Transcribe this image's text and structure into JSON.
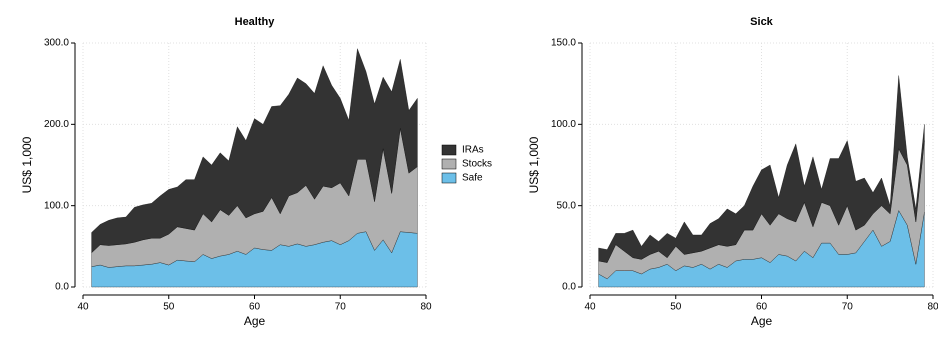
{
  "chart_data": [
    {
      "type": "stacked_area",
      "title": "Healthy",
      "xlabel": "Age",
      "ylabel": "US$ 1,000",
      "grid": true,
      "legend": "right",
      "x": [
        41,
        42,
        43,
        44,
        45,
        46,
        47,
        48,
        49,
        50,
        51,
        52,
        53,
        54,
        55,
        56,
        57,
        58,
        59,
        60,
        61,
        62,
        63,
        64,
        65,
        66,
        67,
        68,
        69,
        70,
        71,
        72,
        73,
        74,
        75,
        76,
        77,
        78,
        79
      ],
      "xlim": [
        40,
        80
      ],
      "xticks": [
        40,
        50,
        60,
        70,
        80
      ],
      "ylim": [
        0,
        300
      ],
      "yticks": [
        {
          "value": 0,
          "label": "0.0"
        },
        {
          "value": 100,
          "label": "100.0"
        },
        {
          "value": 200,
          "label": "200.0"
        },
        {
          "value": 300,
          "label": "300.0"
        }
      ],
      "series": [
        {
          "name": "Safe",
          "color": "#6cbfe8",
          "values": [
            25,
            27,
            24,
            25,
            26,
            26,
            27,
            28,
            30,
            27,
            33,
            32,
            31,
            40,
            35,
            38,
            40,
            44,
            40,
            48,
            46,
            45,
            52,
            50,
            53,
            50,
            52,
            55,
            57,
            52,
            57,
            66,
            68,
            45,
            58,
            42,
            68,
            67,
            66
          ]
        },
        {
          "name": "Stocks",
          "color": "#b0b0b0",
          "values": [
            17,
            25,
            27,
            27,
            27,
            29,
            31,
            32,
            30,
            38,
            41,
            40,
            39,
            50,
            45,
            57,
            48,
            56,
            45,
            42,
            47,
            65,
            38,
            62,
            63,
            75,
            56,
            69,
            65,
            76,
            55,
            91,
            89,
            60,
            112,
            73,
            127,
            73,
            82
          ]
        },
        {
          "name": "IRAs",
          "color": "#333333",
          "values": [
            25,
            25,
            31,
            33,
            33,
            43,
            43,
            43,
            52,
            55,
            49,
            60,
            62,
            70,
            70,
            70,
            67,
            97,
            95,
            117,
            107,
            112,
            133,
            125,
            141,
            125,
            130,
            148,
            126,
            104,
            93,
            136,
            108,
            120,
            88,
            125,
            85,
            77,
            84
          ]
        }
      ]
    },
    {
      "type": "stacked_area",
      "title": "Sick",
      "xlabel": "Age",
      "ylabel": "US$ 1,000",
      "grid": true,
      "x": [
        41,
        42,
        43,
        44,
        45,
        46,
        47,
        48,
        49,
        50,
        51,
        52,
        53,
        54,
        55,
        56,
        57,
        58,
        59,
        60,
        61,
        62,
        63,
        64,
        65,
        66,
        67,
        68,
        69,
        70,
        71,
        72,
        73,
        74,
        75,
        76,
        77,
        78,
        79
      ],
      "xlim": [
        40,
        80
      ],
      "xticks": [
        40,
        50,
        60,
        70,
        80
      ],
      "ylim": [
        0,
        150
      ],
      "yticks": [
        {
          "value": 0,
          "label": "0.0"
        },
        {
          "value": 50,
          "label": "50.0"
        },
        {
          "value": 100,
          "label": "100.0"
        },
        {
          "value": 150,
          "label": "150.0"
        }
      ],
      "series": [
        {
          "color": "#6cbfe8",
          "values": [
            8,
            5,
            10,
            10,
            10,
            8,
            11,
            12,
            14,
            10,
            13,
            12,
            14,
            11,
            14,
            12,
            16,
            17,
            17,
            18,
            15,
            20,
            19,
            16,
            22,
            18,
            27,
            27,
            20,
            20,
            21,
            28,
            35,
            25,
            28,
            47,
            38,
            14,
            46
          ]
        },
        {
          "color": "#b0b0b0",
          "values": [
            8,
            10,
            16,
            12,
            8,
            9,
            9,
            10,
            4,
            15,
            7,
            9,
            8,
            13,
            12,
            13,
            10,
            18,
            18,
            27,
            23,
            25,
            23,
            24,
            30,
            19,
            25,
            23,
            18,
            30,
            14,
            10,
            10,
            25,
            17,
            38,
            37,
            26,
            44
          ]
        },
        {
          "color": "#333333",
          "values": [
            8,
            8,
            7,
            11,
            17,
            8,
            12,
            6,
            15,
            5,
            20,
            11,
            10,
            15,
            16,
            23,
            19,
            15,
            27,
            27,
            37,
            10,
            33,
            48,
            10,
            43,
            8,
            29,
            41,
            40,
            30,
            29,
            13,
            17,
            5,
            45,
            5,
            8,
            10
          ]
        }
      ]
    }
  ]
}
